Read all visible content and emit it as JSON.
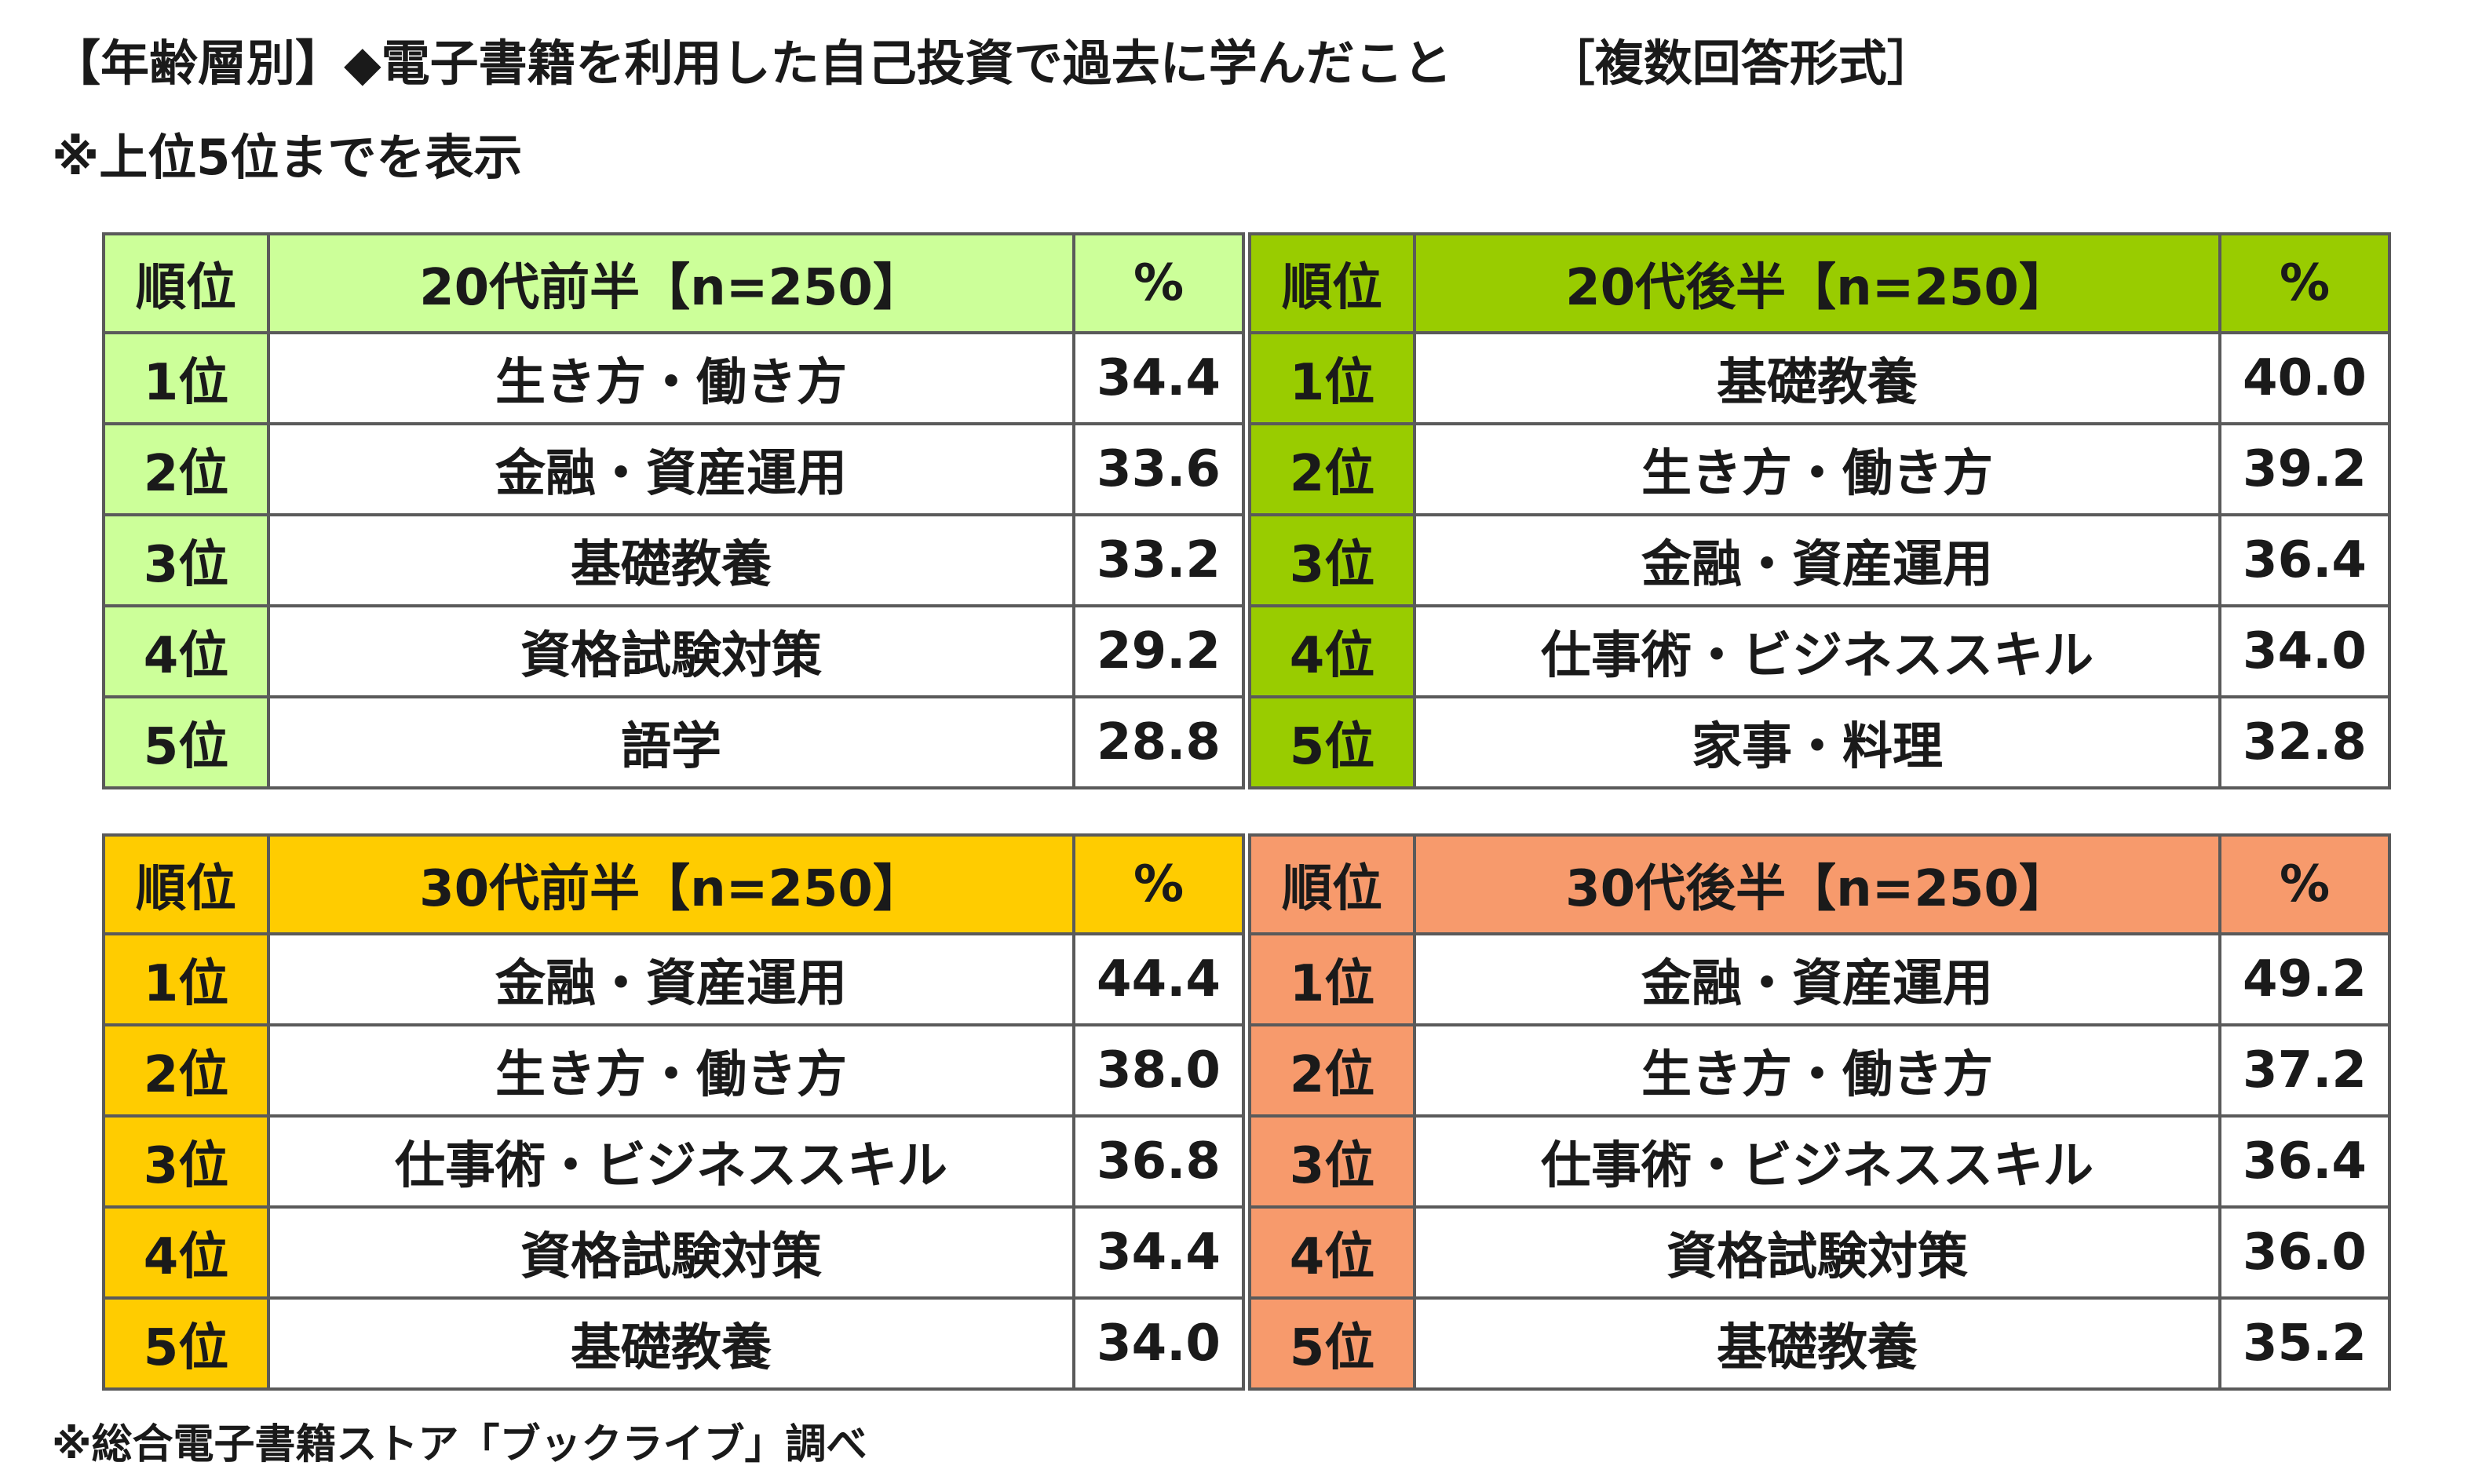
{
  "title": {
    "main": "【年齢層別】◆電子書籍を利用した自己投資で過去に学んだこと",
    "format": "［複数回答形式］"
  },
  "subtitle": "※上位5位までを表示",
  "footer": "※総合電子書籍ストア「ブックライブ」調べ",
  "colors": {
    "table_1_header": "#ccff99",
    "table_1_rank": "#ccff99",
    "table_2_header": "#99cc00",
    "table_2_rank": "#99cc00",
    "table_3_header": "#ffcc00",
    "table_3_rank": "#ffcc00",
    "table_4_header": "#f79a6c",
    "table_4_rank": "#f79a6c",
    "border": "#5a5a5a"
  },
  "chart_data": [
    {
      "type": "table",
      "group": "20代前半【n=250】",
      "columns": [
        "順位",
        "20代前半【n=250】",
        "%"
      ],
      "rows": [
        {
          "rank": "1位",
          "topic": "生き方・働き方",
          "pct": "34.4"
        },
        {
          "rank": "2位",
          "topic": "金融・資産運用",
          "pct": "33.6"
        },
        {
          "rank": "3位",
          "topic": "基礎教養",
          "pct": "33.2"
        },
        {
          "rank": "4位",
          "topic": "資格試験対策",
          "pct": "29.2"
        },
        {
          "rank": "5位",
          "topic": "語学",
          "pct": "28.8"
        }
      ]
    },
    {
      "type": "table",
      "group": "20代後半【n=250】",
      "columns": [
        "順位",
        "20代後半【n=250】",
        "%"
      ],
      "rows": [
        {
          "rank": "1位",
          "topic": "基礎教養",
          "pct": "40.0"
        },
        {
          "rank": "2位",
          "topic": "生き方・働き方",
          "pct": "39.2"
        },
        {
          "rank": "3位",
          "topic": "金融・資産運用",
          "pct": "36.4"
        },
        {
          "rank": "4位",
          "topic": "仕事術・ビジネススキル",
          "pct": "34.0"
        },
        {
          "rank": "5位",
          "topic": "家事・料理",
          "pct": "32.8"
        }
      ]
    },
    {
      "type": "table",
      "group": "30代前半【n=250】",
      "columns": [
        "順位",
        "30代前半【n=250】",
        "%"
      ],
      "rows": [
        {
          "rank": "1位",
          "topic": "金融・資産運用",
          "pct": "44.4"
        },
        {
          "rank": "2位",
          "topic": "生き方・働き方",
          "pct": "38.0"
        },
        {
          "rank": "3位",
          "topic": "仕事術・ビジネススキル",
          "pct": "36.8"
        },
        {
          "rank": "4位",
          "topic": "資格試験対策",
          "pct": "34.4"
        },
        {
          "rank": "5位",
          "topic": "基礎教養",
          "pct": "34.0"
        }
      ]
    },
    {
      "type": "table",
      "group": "30代後半【n=250】",
      "columns": [
        "順位",
        "30代後半【n=250】",
        "%"
      ],
      "rows": [
        {
          "rank": "1位",
          "topic": "金融・資産運用",
          "pct": "49.2"
        },
        {
          "rank": "2位",
          "topic": "生き方・働き方",
          "pct": "37.2"
        },
        {
          "rank": "3位",
          "topic": "仕事術・ビジネススキル",
          "pct": "36.4"
        },
        {
          "rank": "4位",
          "topic": "資格試験対策",
          "pct": "36.0"
        },
        {
          "rank": "5位",
          "topic": "基礎教養",
          "pct": "35.2"
        }
      ]
    }
  ]
}
